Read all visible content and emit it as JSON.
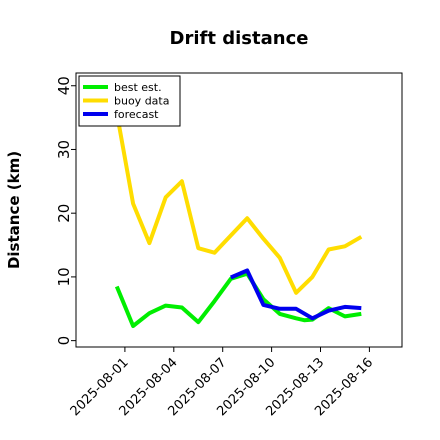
{
  "chart_data": {
    "type": "line",
    "title": "Drift distance",
    "xlabel": "",
    "ylabel": "Distance (km)",
    "ylim": [
      -1,
      42
    ],
    "yticks": [
      0,
      10,
      20,
      30,
      40
    ],
    "xlim": [
      "2025-07-29T00:00",
      "2025-08-18T00:00"
    ],
    "xticks": [
      "2025-08-01",
      "2025-08-04",
      "2025-08-07",
      "2025-08-10",
      "2025-08-13",
      "2025-08-16"
    ],
    "xtick_colors": [
      "#000000",
      "#000000",
      "#228B22",
      "#000000",
      "#000000",
      "#000000"
    ],
    "legend": {
      "position": "top-left",
      "entries": [
        "best est.",
        "buoy data",
        "forecast"
      ]
    },
    "grid": false,
    "series": [
      {
        "name": "best est.",
        "color": "#00ee00",
        "x": [
          "2025-07-31T12:00",
          "2025-08-01T12:00",
          "2025-08-02T12:00",
          "2025-08-03T12:00",
          "2025-08-04T12:00",
          "2025-08-05T12:00",
          "2025-08-06T12:00",
          "2025-08-07T12:00",
          "2025-08-08T12:00",
          "2025-08-09T12:00",
          "2025-08-10T12:00",
          "2025-08-11T12:00",
          "2025-08-12T00:00",
          "2025-08-12T12:00",
          "2025-08-13T12:00",
          "2025-08-14T12:00",
          "2025-08-15T12:00"
        ],
        "y": [
          8.5,
          2.3,
          4.3,
          5.5,
          5.2,
          2.9,
          6.2,
          9.7,
          10.5,
          6.5,
          4.2,
          3.5,
          3.2,
          3.3,
          5.1,
          3.8,
          4.2
        ]
      },
      {
        "name": "buoy data",
        "color": "#ffdd00",
        "x": [
          "2025-07-31T15:00",
          "2025-08-01T12:00",
          "2025-08-02T12:00",
          "2025-08-03T12:00",
          "2025-08-04T12:00",
          "2025-08-05T12:00",
          "2025-08-06T12:00",
          "2025-08-07T12:00",
          "2025-08-08T12:00",
          "2025-08-09T12:00",
          "2025-08-10T12:00",
          "2025-08-11T12:00",
          "2025-08-12T12:00",
          "2025-08-13T12:00",
          "2025-08-14T12:00",
          "2025-08-15T12:00"
        ],
        "y": [
          34.0,
          21.5,
          15.3,
          22.5,
          25.0,
          14.5,
          13.8,
          16.5,
          19.2,
          16.0,
          13.0,
          7.5,
          10.0,
          14.3,
          14.8,
          16.3
        ]
      },
      {
        "name": "forecast",
        "color": "#0000ee",
        "x": [
          "2025-08-07T12:00",
          "2025-08-08T12:00",
          "2025-08-09T12:00",
          "2025-08-10T12:00",
          "2025-08-11T12:00",
          "2025-08-12T12:00",
          "2025-08-13T12:00",
          "2025-08-14T12:00",
          "2025-08-15T12:00"
        ],
        "y": [
          9.9,
          11.0,
          5.6,
          5.0,
          5.0,
          3.5,
          4.7,
          5.3,
          5.1
        ]
      }
    ]
  }
}
